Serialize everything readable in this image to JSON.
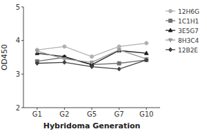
{
  "chart_data": {
    "type": "line",
    "x_label": "Hybridoma Generation",
    "y_label": "OD450",
    "categories": [
      "G1",
      "G2",
      "G5",
      "G7",
      "G10"
    ],
    "series": [
      {
        "name": "12H6G",
        "color": "#b0b0b0",
        "marker": "circle",
        "values": [
          3.72,
          3.82,
          3.52,
          3.82,
          3.92
        ]
      },
      {
        "name": "1C1H1",
        "color": "#707070",
        "marker": "square",
        "values": [
          3.38,
          3.5,
          3.28,
          3.32,
          3.42
        ]
      },
      {
        "name": "3E5G7",
        "color": "#1a1a1a",
        "marker": "triangle-up",
        "values": [
          3.62,
          3.52,
          3.28,
          3.7,
          3.62
        ]
      },
      {
        "name": "8H3C4",
        "color": "#999999",
        "marker": "triangle-down",
        "values": [
          3.68,
          3.45,
          3.35,
          3.72,
          3.45
        ]
      },
      {
        "name": "12B2E",
        "color": "#404040",
        "marker": "diamond",
        "values": [
          3.32,
          3.35,
          3.22,
          3.15,
          3.42
        ]
      }
    ],
    "ylim": [
      2.0,
      5.0
    ],
    "yticks": [
      2,
      3,
      4,
      5
    ],
    "grid": false,
    "legend": "right"
  }
}
